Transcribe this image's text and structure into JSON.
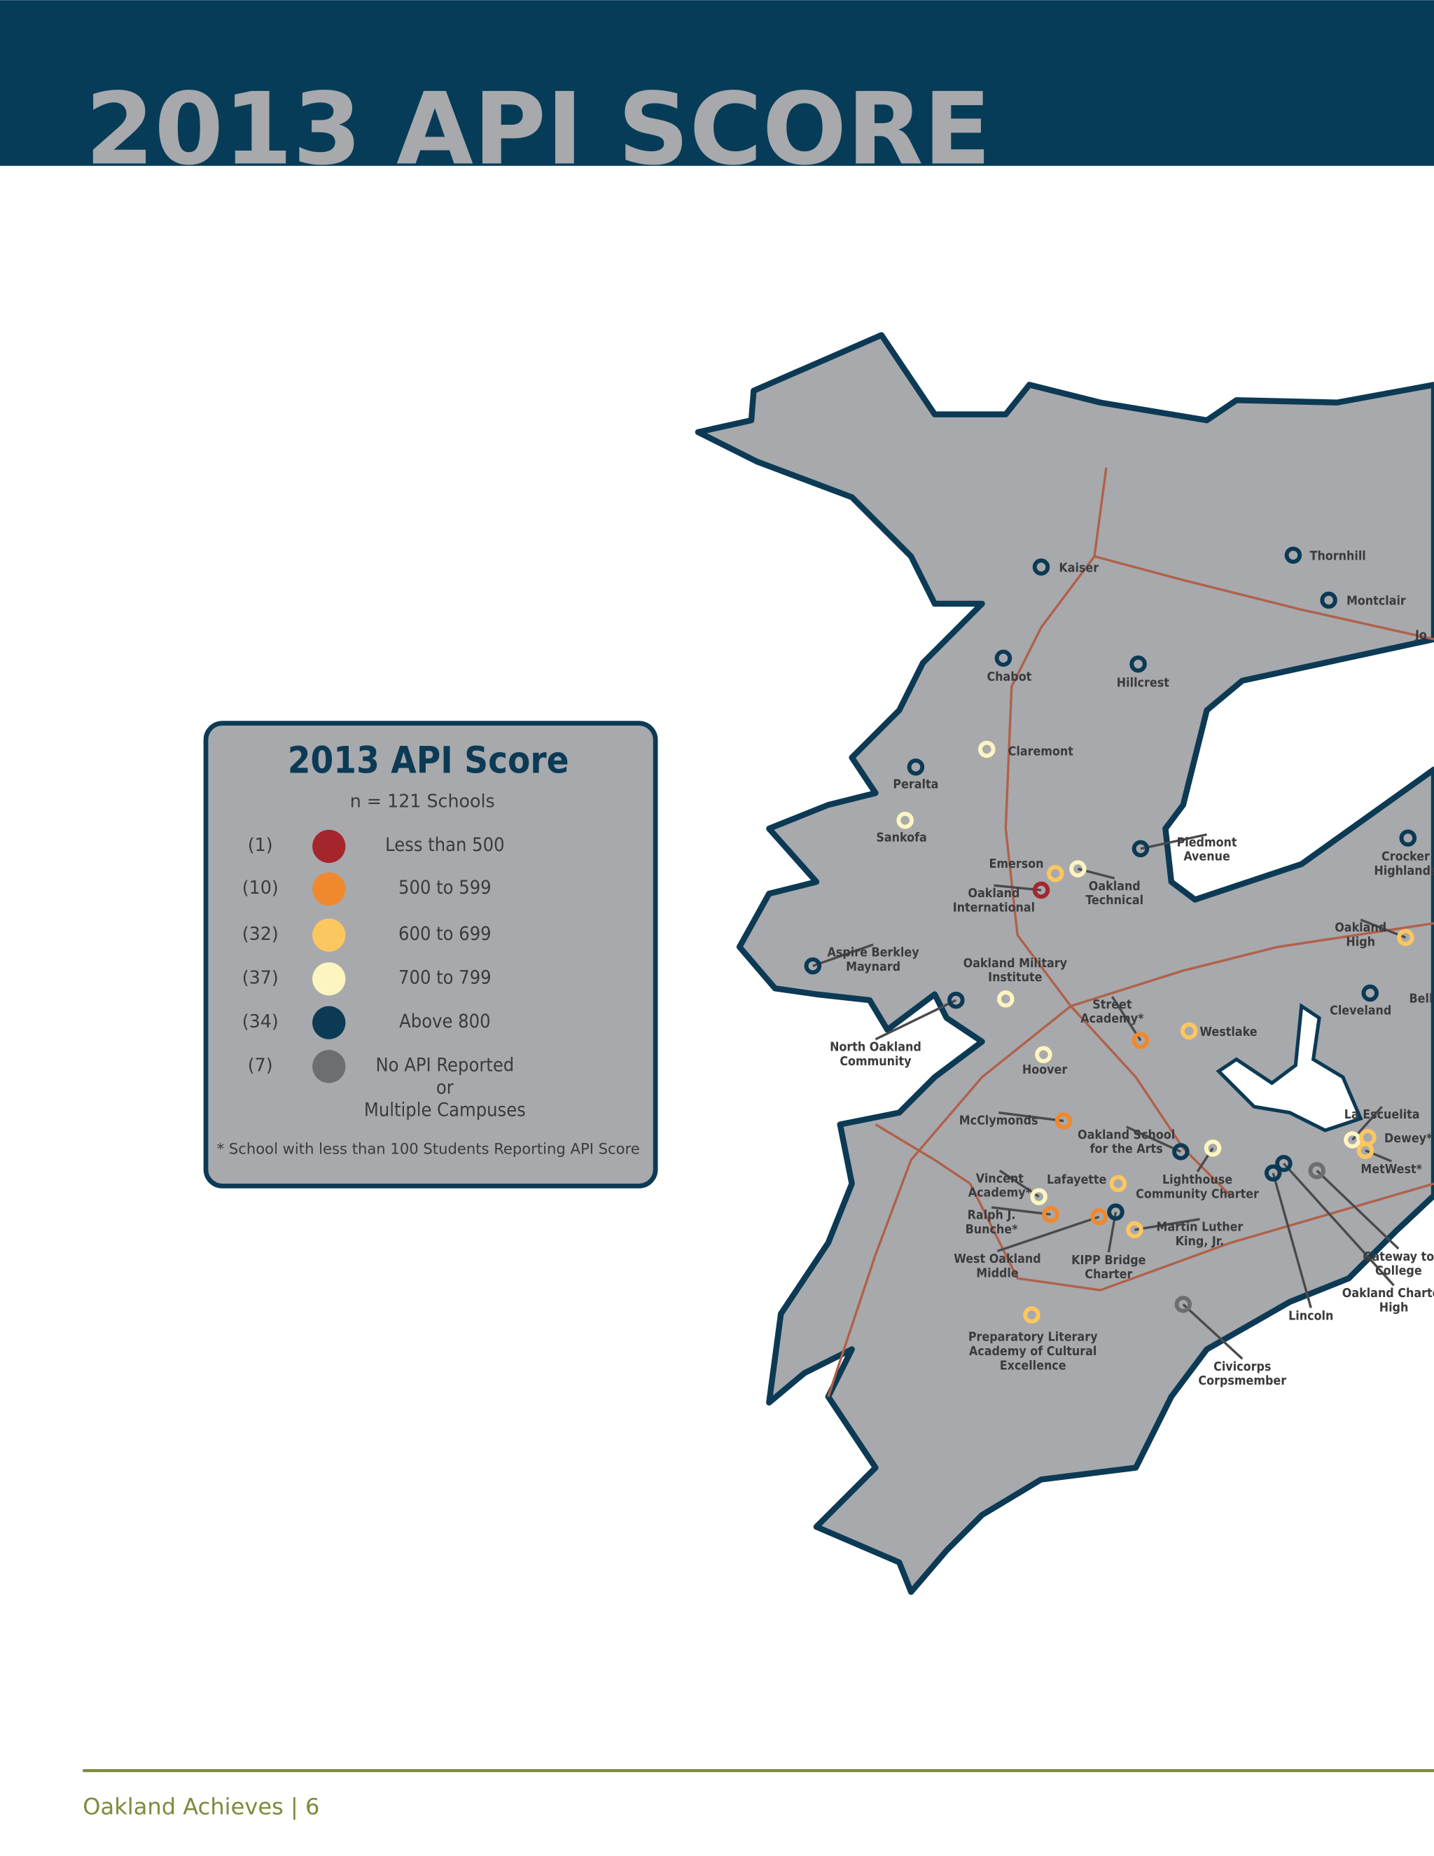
{
  "header": {
    "title": "2013 API SCORE"
  },
  "legend": {
    "title": "2013 API Score",
    "subtitle": "n = 121 Schools",
    "items": [
      {
        "count": "(1)",
        "color": "#a4262c",
        "label": [
          "Less than 500"
        ]
      },
      {
        "count": "(10)",
        "color": "#f0892d",
        "label": [
          "500 to 599"
        ]
      },
      {
        "count": "(32)",
        "color": "#fdc75f",
        "label": [
          "600 to 699"
        ]
      },
      {
        "count": "(37)",
        "color": "#fdf5c0",
        "label": [
          "700 to 799"
        ]
      },
      {
        "count": "(34)",
        "color": "#0c3a55",
        "label": [
          "Above 800"
        ]
      },
      {
        "count": "(7)",
        "color": "#6d6e71",
        "label": [
          "No API Reported",
          "or",
          "Multiple Campuses"
        ]
      }
    ],
    "note": "* School with less than 100 Students Reporting API Score"
  },
  "schools": [
    {
      "name": [
        "Kaiser"
      ],
      "category": 4
    },
    {
      "name": [
        "Thornhill"
      ],
      "category": 4
    },
    {
      "name": [
        "Montclair"
      ],
      "category": 4
    },
    {
      "name": [
        "Chabot"
      ],
      "category": 4
    },
    {
      "name": [
        "Hillcrest"
      ],
      "category": 4
    },
    {
      "name": [
        "Claremont"
      ],
      "category": 3
    },
    {
      "name": [
        "Peralta"
      ],
      "category": 4
    },
    {
      "name": [
        "Sankofa"
      ],
      "category": 3
    },
    {
      "name": [
        "Piedmont",
        "Avenue"
      ],
      "category": 4
    },
    {
      "name": [
        "Crocker",
        "Highlands"
      ],
      "category": 4
    },
    {
      "name": [
        "Emerson"
      ],
      "category": 2
    },
    {
      "name": [
        "Oakland",
        "Technical"
      ],
      "category": 3
    },
    {
      "name": [
        "Oakland",
        "International"
      ],
      "category": 0
    },
    {
      "name": [
        "Oakland",
        "High"
      ],
      "category": 2
    },
    {
      "name": [
        "Aspire Berkley",
        "Maynard"
      ],
      "category": 4
    },
    {
      "name": [
        "Oakland Military",
        "Institute"
      ],
      "category": 3
    },
    {
      "name": [
        "North Oakland",
        "Community"
      ],
      "category": 4
    },
    {
      "name": [
        "Cleveland"
      ],
      "category": 4
    },
    {
      "name": [
        "Street",
        "Academy*"
      ],
      "category": 1
    },
    {
      "name": [
        "Westlake"
      ],
      "category": 2
    },
    {
      "name": [
        "Hoover"
      ],
      "category": 3
    },
    {
      "name": [
        "McClymonds"
      ],
      "category": 1
    },
    {
      "name": [
        "Oakland School",
        "for the Arts"
      ],
      "category": 4
    },
    {
      "name": [
        "Lighthouse",
        "Community Charter"
      ],
      "category": 3
    },
    {
      "name": [
        "La Escuelita"
      ],
      "category": 3
    },
    {
      "name": [
        "Dewey*"
      ],
      "category": 2
    },
    {
      "name": [
        "MetWest*"
      ],
      "category": 2
    },
    {
      "name": [
        "Vincent",
        "Academy*"
      ],
      "category": 3
    },
    {
      "name": [
        "Lafayette"
      ],
      "category": 2
    },
    {
      "name": [
        "Ralph J.",
        "Bunche*"
      ],
      "category": 1
    },
    {
      "name": [
        "KIPP Bridge",
        "Charter"
      ],
      "category": 4
    },
    {
      "name": [
        "Martin Luther",
        "King, Jr."
      ],
      "category": 2
    },
    {
      "name": [
        "West Oakland",
        "Middle"
      ],
      "category": 1
    },
    {
      "name": [
        "Lincoln"
      ],
      "category": 4
    },
    {
      "name": [
        "Oakland Charter",
        "High"
      ],
      "category": 4
    },
    {
      "name": [
        "Gateway to",
        "College"
      ],
      "category": 5
    },
    {
      "name": [
        "Preparatory Literary",
        "Academy of Cultural",
        "Excellence"
      ],
      "category": 2
    },
    {
      "name": [
        "Civicorps",
        "Corpsmember"
      ],
      "category": 5
    }
  ],
  "cropped_labels": [
    "Jo",
    "Bell"
  ],
  "footer": {
    "text": "Oakland Achieves | 6"
  }
}
